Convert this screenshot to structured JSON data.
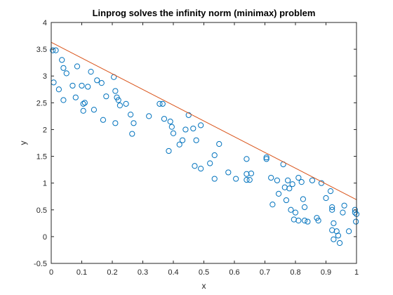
{
  "chart_data": {
    "type": "scatter",
    "title": "Linprog solves the infinity norm (minimax) problem",
    "xlabel": "x",
    "ylabel": "y",
    "xlim": [
      0,
      1
    ],
    "ylim": [
      -0.5,
      4
    ],
    "xticks": [
      0,
      0.1,
      0.2,
      0.3,
      0.4,
      0.5,
      0.6,
      0.7,
      0.8,
      0.9,
      1
    ],
    "xtick_labels": [
      "0",
      "0.1",
      "0.2",
      "0.3",
      "0.4",
      "0.5",
      "0.6",
      "0.7",
      "0.8",
      "0.9",
      "1"
    ],
    "yticks": [
      -0.5,
      0,
      0.5,
      1,
      1.5,
      2,
      2.5,
      3,
      3.5,
      4
    ],
    "ytick_labels": [
      "-0.5",
      "0",
      "0.5",
      "1",
      "1.5",
      "2",
      "2.5",
      "3",
      "3.5",
      "4"
    ],
    "grid": false,
    "colors": {
      "markers": "#0072BD",
      "line": "#D95319",
      "axes": "#262626"
    },
    "series": [
      {
        "type": "scatter",
        "marker": "circle",
        "points": [
          [
            0.005,
            3.48
          ],
          [
            0.015,
            3.48
          ],
          [
            0.008,
            2.88
          ],
          [
            0.025,
            2.75
          ],
          [
            0.035,
            3.3
          ],
          [
            0.04,
            3.15
          ],
          [
            0.05,
            3.05
          ],
          [
            0.04,
            2.55
          ],
          [
            0.07,
            2.82
          ],
          [
            0.08,
            2.6
          ],
          [
            0.085,
            3.18
          ],
          [
            0.1,
            2.82
          ],
          [
            0.105,
            2.48
          ],
          [
            0.11,
            2.5
          ],
          [
            0.12,
            2.8
          ],
          [
            0.105,
            2.35
          ],
          [
            0.13,
            3.08
          ],
          [
            0.14,
            2.37
          ],
          [
            0.15,
            2.92
          ],
          [
            0.165,
            2.87
          ],
          [
            0.17,
            2.18
          ],
          [
            0.18,
            2.62
          ],
          [
            0.205,
            2.98
          ],
          [
            0.21,
            2.72
          ],
          [
            0.215,
            2.6
          ],
          [
            0.21,
            2.12
          ],
          [
            0.22,
            2.55
          ],
          [
            0.225,
            2.45
          ],
          [
            0.245,
            2.48
          ],
          [
            0.26,
            2.28
          ],
          [
            0.265,
            1.92
          ],
          [
            0.27,
            2.12
          ],
          [
            0.32,
            2.25
          ],
          [
            0.355,
            2.48
          ],
          [
            0.365,
            2.48
          ],
          [
            0.37,
            2.2
          ],
          [
            0.385,
            1.6
          ],
          [
            0.39,
            2.15
          ],
          [
            0.395,
            2.05
          ],
          [
            0.4,
            1.93
          ],
          [
            0.42,
            1.72
          ],
          [
            0.43,
            1.8
          ],
          [
            0.44,
            2.0
          ],
          [
            0.45,
            2.27
          ],
          [
            0.465,
            2.02
          ],
          [
            0.47,
            1.32
          ],
          [
            0.475,
            1.8
          ],
          [
            0.49,
            2.08
          ],
          [
            0.49,
            1.27
          ],
          [
            0.52,
            1.37
          ],
          [
            0.535,
            1.52
          ],
          [
            0.535,
            1.08
          ],
          [
            0.55,
            1.73
          ],
          [
            0.58,
            1.2
          ],
          [
            0.605,
            1.08
          ],
          [
            0.64,
            1.45
          ],
          [
            0.64,
            1.17
          ],
          [
            0.65,
            1.06
          ],
          [
            0.655,
            1.18
          ],
          [
            0.64,
            1.06
          ],
          [
            0.705,
            1.48
          ],
          [
            0.705,
            1.45
          ],
          [
            0.72,
            1.1
          ],
          [
            0.725,
            0.6
          ],
          [
            0.74,
            1.05
          ],
          [
            0.745,
            0.8
          ],
          [
            0.76,
            1.35
          ],
          [
            0.765,
            0.92
          ],
          [
            0.77,
            0.68
          ],
          [
            0.775,
            1.05
          ],
          [
            0.78,
            0.9
          ],
          [
            0.785,
            0.5
          ],
          [
            0.79,
            0.98
          ],
          [
            0.8,
            0.45
          ],
          [
            0.795,
            0.32
          ],
          [
            0.81,
            1.1
          ],
          [
            0.81,
            0.3
          ],
          [
            0.82,
            1.02
          ],
          [
            0.825,
            0.7
          ],
          [
            0.83,
            0.55
          ],
          [
            0.83,
            0.3
          ],
          [
            0.84,
            0.28
          ],
          [
            0.855,
            1.05
          ],
          [
            0.87,
            0.35
          ],
          [
            0.875,
            0.3
          ],
          [
            0.885,
            1.0
          ],
          [
            0.9,
            0.72
          ],
          [
            0.915,
            0.85
          ],
          [
            0.92,
            0.5
          ],
          [
            0.92,
            0.55
          ],
          [
            0.925,
            0.25
          ],
          [
            0.92,
            0.12
          ],
          [
            0.925,
            -0.05
          ],
          [
            0.935,
            0.1
          ],
          [
            0.94,
            0.02
          ],
          [
            0.945,
            -0.12
          ],
          [
            0.955,
            0.45
          ],
          [
            0.96,
            0.58
          ],
          [
            0.975,
            0.1
          ],
          [
            0.995,
            0.5
          ],
          [
            0.995,
            0.45
          ],
          [
            1.0,
            0.42
          ],
          [
            0.998,
            0.28
          ]
        ]
      },
      {
        "type": "line",
        "points": [
          [
            0,
            3.63
          ],
          [
            1,
            0.69
          ]
        ]
      }
    ]
  }
}
